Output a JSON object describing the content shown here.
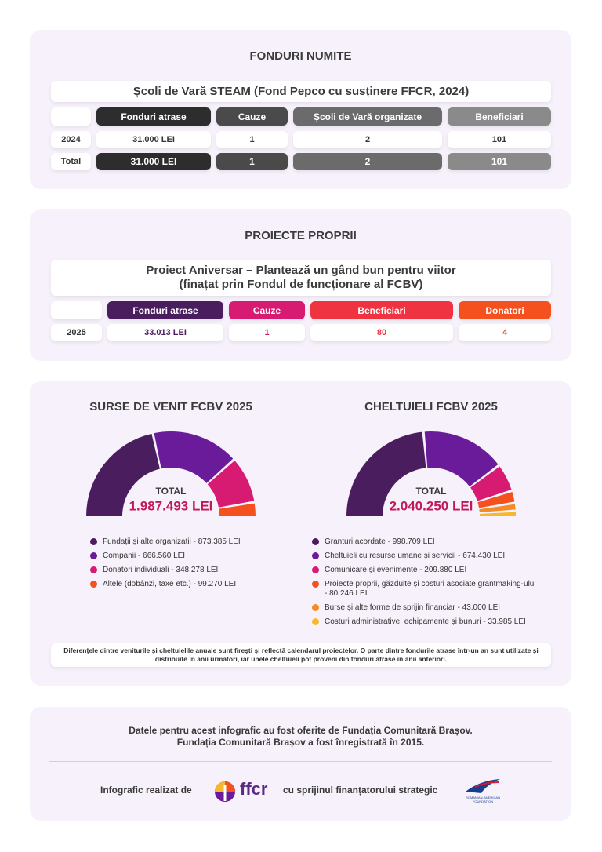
{
  "named_funds": {
    "title": "FONDURI NUMITE",
    "subtitle": "Școli de Vară STEAM (Fond Pepco cu susținere FFCR, 2024)",
    "columns": [
      "Fonduri atrase",
      "Cauze",
      "Școli de Vară organizate",
      "Beneficiari"
    ],
    "rows": [
      [
        "2024",
        "31.000 LEI",
        "1",
        "2",
        "101"
      ],
      [
        "Total",
        "31.000 LEI",
        "1",
        "2",
        "101"
      ]
    ]
  },
  "own_projects": {
    "title": "PROIECTE PROPRII",
    "subtitle_lines": [
      "Proiect Aniversar – Plantează un gând bun pentru viitor",
      "(finațat prin Fondul de funcționare al FCBV)"
    ],
    "columns": [
      "Fonduri atrase",
      "Cauze",
      "Beneficiari",
      "Donatori"
    ],
    "rows": [
      [
        "2025",
        "33.013 LEI",
        "1",
        "80",
        "4"
      ]
    ]
  },
  "chart_data": [
    {
      "type": "semi-donut",
      "title": "SURSE DE VENIT FCBV 2025",
      "total_title": "TOTAL",
      "total_label": "1.987.493 LEI",
      "categories": [
        "Fundații și alte organizații",
        "Companii",
        "Donatori individuali",
        "Altele (dobânzi, taxe etc.)"
      ],
      "values": [
        873385,
        666560,
        348278,
        99270
      ],
      "value_labels": [
        "873.385 LEI",
        "666.560 LEI",
        "348.278 LEI",
        "99.270 LEI"
      ],
      "colors": [
        "#4a1d5e",
        "#6a1b9a",
        "#d81b72",
        "#f4511e"
      ]
    },
    {
      "type": "semi-donut",
      "title": "CHELTUIELI FCBV 2025",
      "total_title": "TOTAL",
      "total_label": "2.040.250 LEI",
      "categories": [
        "Granturi acordate",
        "Cheltuieli cu resurse umane și servicii",
        "Comunicare și evenimente",
        "Proiecte proprii, găzduite și costuri asociate grantmaking-ului",
        "Burse și alte forme de sprijin financiar",
        "Costuri administrative, echipamente și bunuri"
      ],
      "values": [
        998709,
        674430,
        209880,
        80246,
        43000,
        33985
      ],
      "value_labels": [
        "998.709 LEI",
        "674.430 LEI",
        "209.880 LEI",
        "80.246 LEI",
        "43.000 LEI",
        "33.985 LEI"
      ],
      "colors": [
        "#4a1d5e",
        "#6a1b9a",
        "#d81b72",
        "#f4511e",
        "#f28c28",
        "#f5b82e"
      ]
    }
  ],
  "note": "Diferențele dintre veniturile și cheltuielile anuale sunt firești și reflectă calendarul proiectelor. O parte dintre fondurile atrase într-un an sunt utilizate și distribuite în anii următori, iar unele cheltuieli pot proveni din fonduri atrase în anii anteriori.",
  "footer": {
    "source_lines": [
      "Datele pentru acest infografic au fost oferite de Fundația Comunitară Brașov.",
      "Fundația Comunitară Brașov a fost înregistrată în 2015."
    ],
    "made_by": "Infografic realizat de",
    "logo_text": "ffcr",
    "support": "cu sprijinul finanțatorului strategic",
    "partner_logo_text": "ROMANIAN-AMERICAN FOUNDATION"
  }
}
